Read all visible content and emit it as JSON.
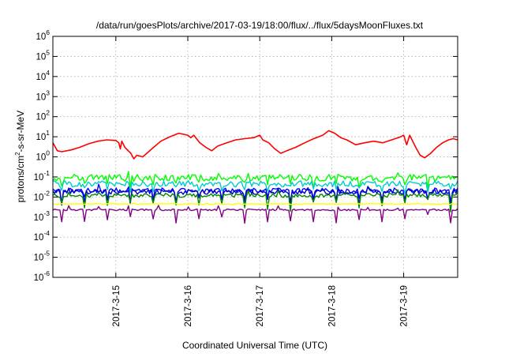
{
  "chart_data": {
    "type": "line",
    "title": "/data/run/goesPlots/archive/2017-03-19/18:00/flux/../flux/5daysMoonFluxes.txt",
    "xlabel": "Coordinated Universal Time (UTC)",
    "ylabel": {
      "base": "protons/cm",
      "sup": "2",
      "rest": "-s-sr-MeV"
    },
    "y_scale": "log",
    "ylim": [
      1e-06,
      1000000.0
    ],
    "y_ticks": [
      {
        "value": 1e-06,
        "base": "10",
        "exp": "-6"
      },
      {
        "value": 1e-05,
        "base": "10",
        "exp": "-5"
      },
      {
        "value": 0.0001,
        "base": "10",
        "exp": "-4"
      },
      {
        "value": 0.001,
        "base": "10",
        "exp": "-3"
      },
      {
        "value": 0.01,
        "base": "10",
        "exp": "-2"
      },
      {
        "value": 0.1,
        "base": "10",
        "exp": "-1"
      },
      {
        "value": 1,
        "base": "10",
        "exp": "0"
      },
      {
        "value": 10,
        "base": "10",
        "exp": "1"
      },
      {
        "value": 100,
        "base": "10",
        "exp": "2"
      },
      {
        "value": 1000,
        "base": "10",
        "exp": "3"
      },
      {
        "value": 10000,
        "base": "10",
        "exp": "4"
      },
      {
        "value": 100000,
        "base": "10",
        "exp": "5"
      },
      {
        "value": 1000000,
        "base": "10",
        "exp": "6"
      }
    ],
    "xlim": [
      "2017-03-14 03:00",
      "2017-03-19 18:00"
    ],
    "x_ticks": [
      {
        "value": "2017-03-15 00:00",
        "label": "2017-3-15"
      },
      {
        "value": "2017-03-16 00:00",
        "label": "2017-3-16"
      },
      {
        "value": "2017-03-17 00:00",
        "label": "2017-3-17"
      },
      {
        "value": "2017-03-18 00:00",
        "label": "2017-3-18"
      },
      {
        "value": "2017-03-19 00:00",
        "label": "2017-3-19"
      }
    ],
    "grid": true,
    "legend": "none",
    "series": [
      {
        "color": "#ff0000",
        "points": [
          [
            "2017-03-14 03:00",
            5.0
          ],
          [
            "2017-03-14 04:30",
            2.0
          ],
          [
            "2017-03-14 06:00",
            1.8
          ],
          [
            "2017-03-14 09:00",
            2.2
          ],
          [
            "2017-03-14 12:00",
            3.0
          ],
          [
            "2017-03-14 15:00",
            4.5
          ],
          [
            "2017-03-14 18:00",
            6.0
          ],
          [
            "2017-03-14 21:00",
            7.0
          ],
          [
            "2017-03-15 00:00",
            6.5
          ],
          [
            "2017-03-15 01:00",
            5.0
          ],
          [
            "2017-03-15 01:30",
            2.5
          ],
          [
            "2017-03-15 02:00",
            6.0
          ],
          [
            "2017-03-15 03:00",
            3.0
          ],
          [
            "2017-03-15 05:00",
            1.5
          ],
          [
            "2017-03-15 06:00",
            0.8
          ],
          [
            "2017-03-15 07:00",
            1.2
          ],
          [
            "2017-03-15 09:00",
            1.0
          ],
          [
            "2017-03-15 12:00",
            2.5
          ],
          [
            "2017-03-15 15:00",
            6.0
          ],
          [
            "2017-03-15 18:00",
            10.0
          ],
          [
            "2017-03-15 21:00",
            15.0
          ],
          [
            "2017-03-16 00:00",
            12.0
          ],
          [
            "2017-03-16 01:00",
            9.0
          ],
          [
            "2017-03-16 02:00",
            12.0
          ],
          [
            "2017-03-16 04:00",
            5.0
          ],
          [
            "2017-03-16 06:00",
            3.0
          ],
          [
            "2017-03-16 08:00",
            2.0
          ],
          [
            "2017-03-16 10:00",
            3.5
          ],
          [
            "2017-03-16 13:00",
            5.0
          ],
          [
            "2017-03-16 16:00",
            7.0
          ],
          [
            "2017-03-16 19:00",
            8.0
          ],
          [
            "2017-03-16 22:00",
            9.0
          ],
          [
            "2017-03-17 00:00",
            12.0
          ],
          [
            "2017-03-17 01:00",
            7.0
          ],
          [
            "2017-03-17 03:00",
            5.0
          ],
          [
            "2017-03-17 05:00",
            2.5
          ],
          [
            "2017-03-17 07:00",
            1.5
          ],
          [
            "2017-03-17 09:00",
            2.0
          ],
          [
            "2017-03-17 12:00",
            3.0
          ],
          [
            "2017-03-17 15:00",
            5.0
          ],
          [
            "2017-03-17 18:00",
            8.0
          ],
          [
            "2017-03-17 21:00",
            12.0
          ],
          [
            "2017-03-17 23:00",
            20.0
          ],
          [
            "2017-03-18 01:00",
            15.0
          ],
          [
            "2017-03-18 03:00",
            9.0
          ],
          [
            "2017-03-18 05:00",
            7.0
          ],
          [
            "2017-03-18 08:00",
            4.0
          ],
          [
            "2017-03-18 11:00",
            5.0
          ],
          [
            "2017-03-18 14:00",
            6.0
          ],
          [
            "2017-03-18 17:00",
            5.0
          ],
          [
            "2017-03-18 20:00",
            7.0
          ],
          [
            "2017-03-18 23:00",
            10.0
          ],
          [
            "2017-03-19 00:00",
            12.0
          ],
          [
            "2017-03-19 01:00",
            4.0
          ],
          [
            "2017-03-19 02:00",
            12.0
          ],
          [
            "2017-03-19 04:00",
            3.0
          ],
          [
            "2017-03-19 05:30",
            1.2
          ],
          [
            "2017-03-19 07:00",
            0.9
          ],
          [
            "2017-03-19 09:00",
            1.5
          ],
          [
            "2017-03-19 11:00",
            3.0
          ],
          [
            "2017-03-19 13:00",
            5.0
          ],
          [
            "2017-03-19 15:00",
            7.0
          ],
          [
            "2017-03-19 16:30",
            8.0
          ],
          [
            "2017-03-19 18:00",
            7.0
          ]
        ]
      },
      {
        "color": "#00ff00",
        "base": 0.09,
        "jitter": 0.35,
        "dips": 0.35
      },
      {
        "color": "#00cccc",
        "base": 0.045,
        "jitter": 0.3,
        "dips": 0.3
      },
      {
        "color": "#0000ff",
        "base": 0.02,
        "jitter": 0.3,
        "dips": 0.45
      },
      {
        "color": "#0000cc",
        "base": 0.018,
        "jitter": 0.25,
        "dips": 0.4
      },
      {
        "color": "#008800",
        "base": 0.012,
        "jitter": 0.2,
        "dips": 0.55
      },
      {
        "color": "#ffff00",
        "base": 0.0045,
        "jitter": 0.05,
        "dips": 0.0
      },
      {
        "color": "#800080",
        "base": 0.0023,
        "jitter": 0.08,
        "dips": 0.5
      }
    ]
  }
}
